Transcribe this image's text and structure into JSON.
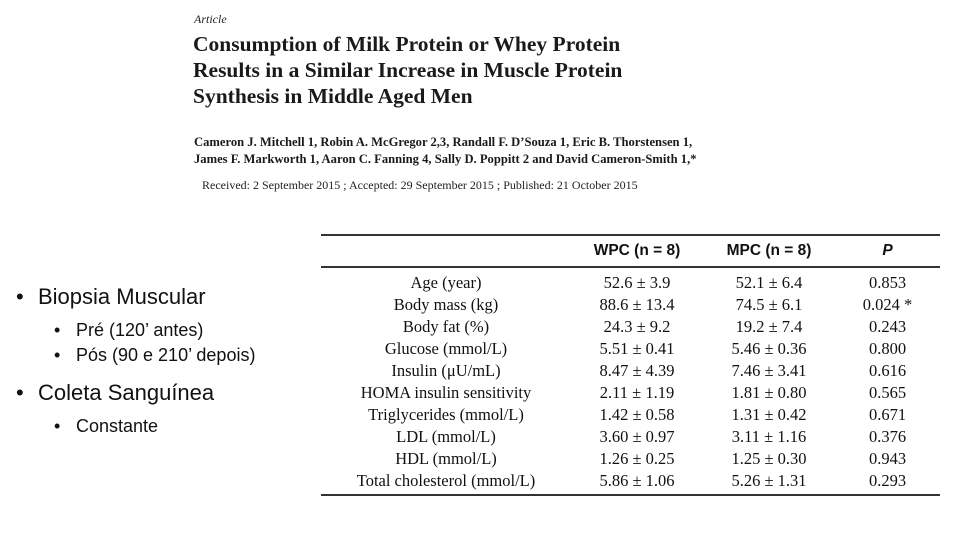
{
  "paper": {
    "label": "Article",
    "title_lines": [
      "Consumption of Milk Protein or Whey Protein",
      "Results in a Similar Increase in Muscle Protein",
      "Synthesis in Middle Aged Men"
    ],
    "authors_line1": "Cameron J. Mitchell 1, Robin A. McGregor 2,3, Randall F. D’Souza 1, Eric B. Thorstensen 1,",
    "authors_line2": "James F. Markworth 1, Aaron C. Fanning 4, Sally D. Poppitt 2 and David Cameron-Smith 1,*",
    "dates": "Received: 2 September 2015 ; Accepted: 29 September 2015 ; Published: 21 October 2015"
  },
  "bullets": {
    "b1": "Biopsia Muscular",
    "b1_sub1": "Pré (120’ antes)",
    "b1_sub2": "Pós (90 e 210’ depois)",
    "b2": "Coleta Sanguínea",
    "b2_sub1": "Constante"
  },
  "table": {
    "headers": {
      "wpc": "WPC (n = 8)",
      "mpc": "MPC (n = 8)",
      "p": "P"
    },
    "rows": [
      {
        "label": "Age (year)",
        "wpc": "52.6 ± 3.9",
        "mpc": "52.1 ± 6.4",
        "p": "0.853"
      },
      {
        "label": "Body mass (kg)",
        "wpc": "88.6 ± 13.4",
        "mpc": "74.5 ± 6.1",
        "p": "0.024 *"
      },
      {
        "label": "Body fat (%)",
        "wpc": "24.3 ± 9.2",
        "mpc": "19.2 ± 7.4",
        "p": "0.243"
      },
      {
        "label": "Glucose (mmol/L)",
        "wpc": "5.51 ± 0.41",
        "mpc": "5.46 ± 0.36",
        "p": "0.800"
      },
      {
        "label": "Insulin (μU/mL)",
        "wpc": "8.47 ± 4.39",
        "mpc": "7.46 ± 3.41",
        "p": "0.616"
      },
      {
        "label": "HOMA insulin sensitivity",
        "wpc": "2.11 ± 1.19",
        "mpc": "1.81 ± 0.80",
        "p": "0.565"
      },
      {
        "label": "Triglycerides (mmol/L)",
        "wpc": "1.42 ± 0.58",
        "mpc": "1.31 ± 0.42",
        "p": "0.671"
      },
      {
        "label": "LDL (mmol/L)",
        "wpc": "3.60 ± 0.97",
        "mpc": "3.11 ± 1.16",
        "p": "0.376"
      },
      {
        "label": "HDL (mmol/L)",
        "wpc": "1.26 ± 0.25",
        "mpc": "1.25 ± 0.30",
        "p": "0.943"
      },
      {
        "label": "Total cholesterol (mmol/L)",
        "wpc": "5.86 ± 1.06",
        "mpc": "5.26 ± 1.31",
        "p": "0.293"
      }
    ]
  }
}
